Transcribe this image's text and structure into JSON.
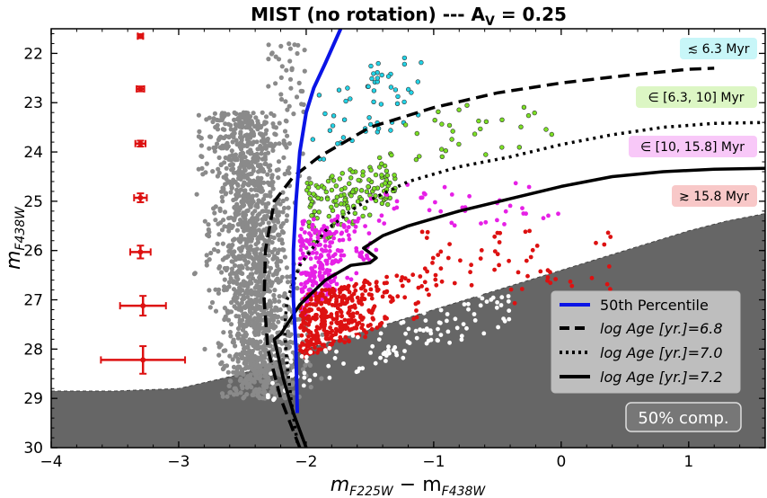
{
  "chart_data": {
    "type": "scatter",
    "title": "MIST (no rotation) --- A",
    "title_sub": "V",
    "title_suffix": " = 0.25",
    "xlabel": "m",
    "xlabel_sub1": "F225W",
    "xlabel_mid": " − m",
    "xlabel_sub2": "F438W",
    "ylabel": "m",
    "ylabel_sub": "F438W",
    "xlim": [
      -4,
      1.6
    ],
    "ylim": [
      30,
      21.5
    ],
    "x_ticks": [
      -4,
      -3,
      -2,
      -1,
      0,
      1
    ],
    "x_tick_labels": [
      "−4",
      "−3",
      "−2",
      "−1",
      "0",
      "1"
    ],
    "y_ticks": [
      22,
      23,
      24,
      25,
      26,
      27,
      28,
      29,
      30
    ],
    "y_tick_labels": [
      "22",
      "23",
      "24",
      "25",
      "26",
      "27",
      "28",
      "29",
      "30"
    ],
    "colors": {
      "grey": "#8a8a8a",
      "cyan": "#22d3e6",
      "green": "#7be024",
      "magenta": "#e620e6",
      "red": "#dd1111",
      "white": "#ffffff",
      "percentile": "#0a14e6",
      "completeness_fill": "#666666"
    },
    "completeness_boundary": {
      "x": [
        -4.0,
        -3.5,
        -3.0,
        -2.5,
        -2.0,
        -1.5,
        -1.0,
        -0.5,
        0.0,
        0.5,
        1.0,
        1.3,
        1.6
      ],
      "y": [
        28.85,
        28.85,
        28.8,
        28.5,
        28.0,
        27.6,
        27.2,
        26.8,
        26.4,
        26.0,
        25.6,
        25.4,
        25.25
      ]
    },
    "completeness_label": "50% comp.",
    "percentile_50": {
      "x": [
        -2.07,
        -2.08,
        -2.1,
        -2.1,
        -2.08,
        -2.05,
        -2.0,
        -1.94,
        -1.85,
        -1.73
      ],
      "y": [
        29.3,
        28.0,
        27.0,
        26.0,
        25.0,
        24.0,
        23.2,
        22.7,
        22.2,
        21.5
      ]
    },
    "isochrones": [
      {
        "name": "log Age [yr.]=6.8",
        "style": "dashed",
        "x": [
          -2.05,
          -2.2,
          -2.3,
          -2.33,
          -2.32,
          -2.25,
          -2.1,
          -1.9,
          -1.7,
          -1.5,
          -1.0,
          -0.5,
          0.0,
          0.5,
          1.0,
          1.2
        ],
        "y": [
          30.0,
          29.0,
          28.0,
          27.0,
          26.0,
          25.0,
          24.5,
          24.1,
          23.8,
          23.5,
          23.1,
          22.8,
          22.6,
          22.45,
          22.32,
          22.3
        ]
      },
      {
        "name": "log Age [yr.]=7.0",
        "style": "dotted",
        "x": [
          -2.07,
          -2.12,
          -2.15,
          -2.17,
          -2.15,
          -2.05,
          -1.85,
          -1.6,
          -1.2,
          -0.8,
          -0.4,
          0.0,
          0.4,
          0.8,
          1.2,
          1.6
        ],
        "y": [
          29.9,
          29.0,
          28.3,
          27.6,
          27.0,
          26.3,
          25.6,
          25.1,
          24.6,
          24.3,
          24.1,
          23.85,
          23.65,
          23.5,
          23.42,
          23.4
        ]
      },
      {
        "name": "log Age [yr.]=7.2",
        "style": "solid",
        "x": [
          -2.0,
          -2.1,
          -2.18,
          -2.25,
          -2.2,
          -2.05,
          -1.85,
          -1.65,
          -1.5,
          -1.45,
          -1.5,
          -1.55,
          -1.4,
          -1.2,
          -0.8,
          -0.4,
          0.0,
          0.4,
          0.8,
          1.2,
          1.6
        ],
        "y": [
          30.0,
          29.3,
          28.6,
          27.8,
          27.7,
          27.1,
          26.6,
          26.3,
          26.25,
          26.15,
          26.05,
          25.95,
          25.7,
          25.5,
          25.2,
          24.95,
          24.7,
          24.5,
          24.4,
          24.35,
          24.33
        ]
      }
    ],
    "legend": {
      "placement": "lower-right",
      "entries": [
        {
          "label": "50th Percentile",
          "style": "solid-blue"
        },
        {
          "label": "log Age [yr.]=6.8",
          "style": "dashed"
        },
        {
          "label": "log Age [yr.]=7.0",
          "style": "dotted"
        },
        {
          "label": "log Age [yr.]=7.2",
          "style": "solid"
        }
      ]
    },
    "age_labels": [
      {
        "text": "≲ 6.3 Myr",
        "color": "#c8f6f8"
      },
      {
        "text": "∈ [6.3, 10] Myr",
        "color": "#dcf6c4"
      },
      {
        "text": "∈ [10, 15.8] Myr",
        "color": "#f8c8f8"
      },
      {
        "text": "≳ 15.8 Myr",
        "color": "#f8c8c8"
      }
    ],
    "error_bars": [
      {
        "x": -3.3,
        "y": 21.65,
        "xerr": 0.02,
        "yerr": 0.04
      },
      {
        "x": -3.3,
        "y": 22.72,
        "xerr": 0.03,
        "yerr": 0.05
      },
      {
        "x": -3.3,
        "y": 23.83,
        "xerr": 0.04,
        "yerr": 0.06
      },
      {
        "x": -3.3,
        "y": 24.93,
        "xerr": 0.05,
        "yerr": 0.09
      },
      {
        "x": -3.3,
        "y": 26.03,
        "xerr": 0.08,
        "yerr": 0.13
      },
      {
        "x": -3.28,
        "y": 27.12,
        "xerr": 0.18,
        "yerr": 0.2
      },
      {
        "x": -3.28,
        "y": 28.22,
        "xerr": 0.33,
        "yerr": 0.28
      }
    ]
  }
}
